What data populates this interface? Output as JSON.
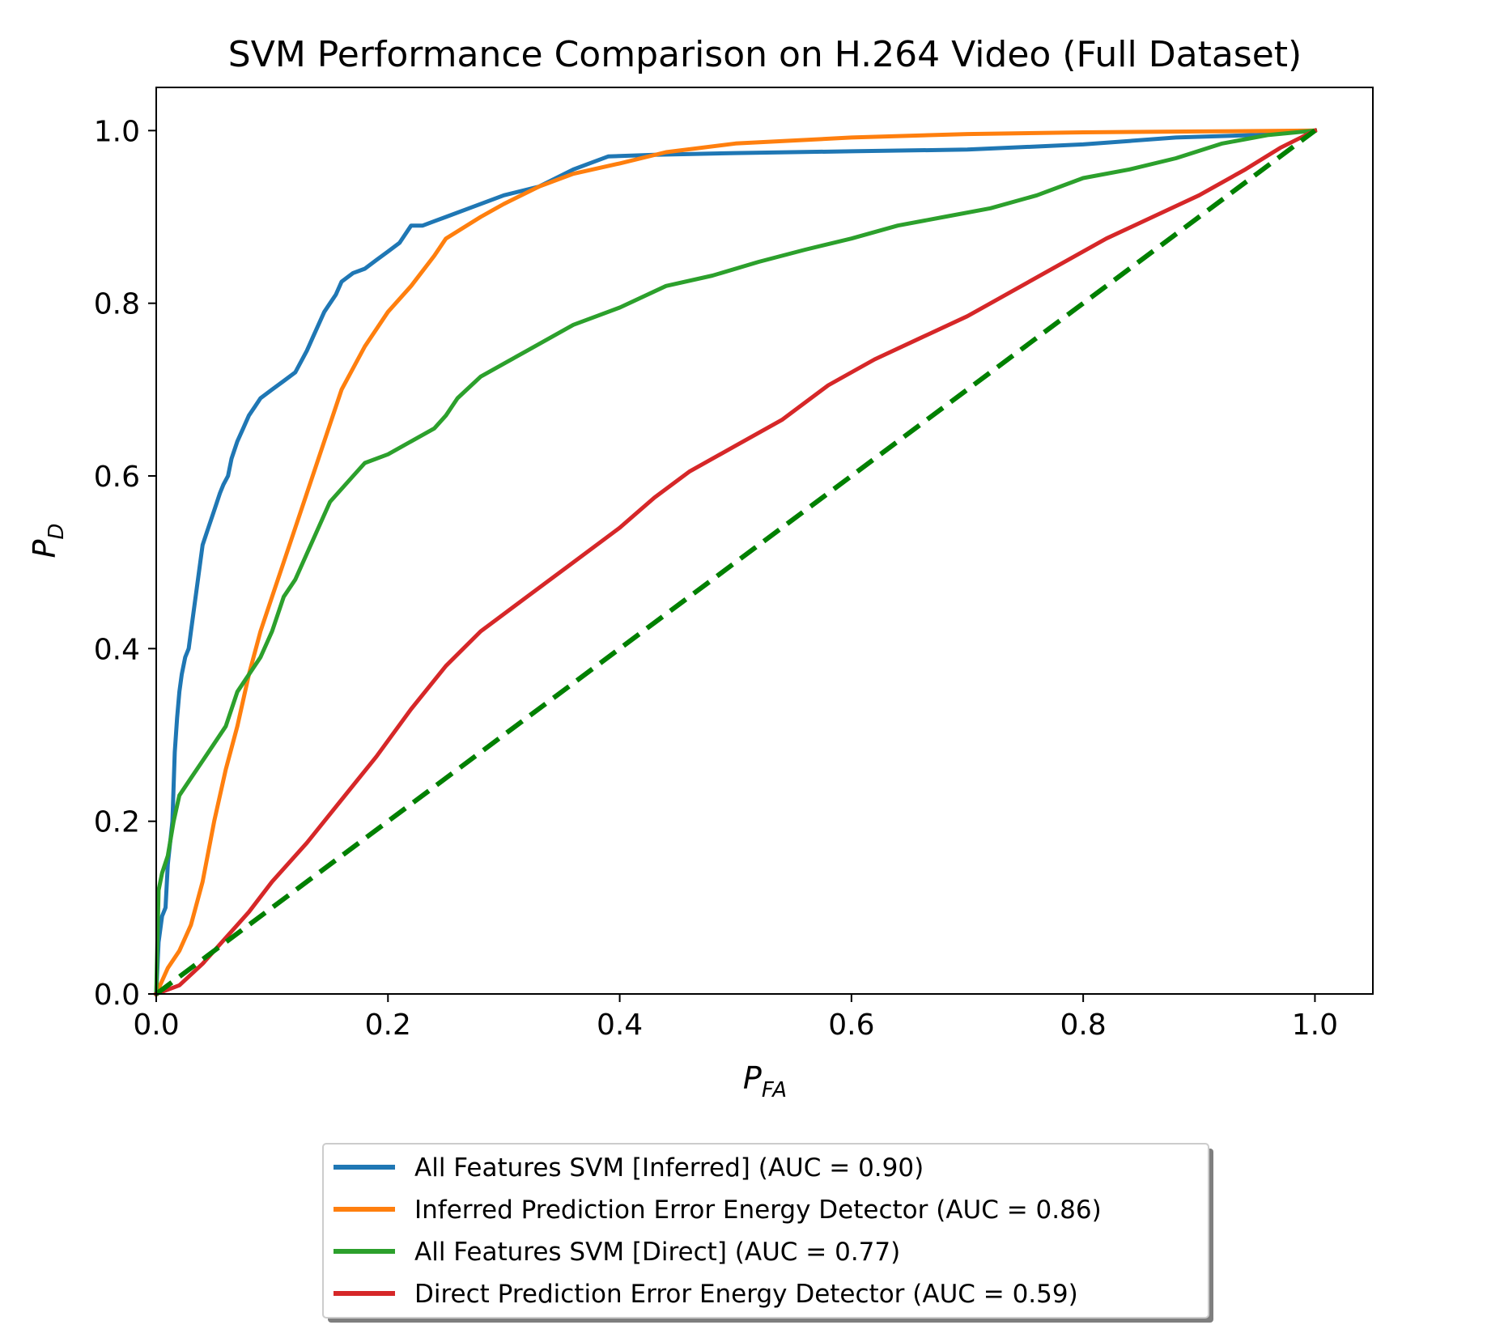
{
  "chart_data": {
    "type": "line",
    "title": "SVM Performance Comparison on H.264 Video (Full Dataset)",
    "xlabel": {
      "symbol": "P",
      "subscript": "FA"
    },
    "ylabel": {
      "symbol": "P",
      "subscript": "D"
    },
    "xlim": [
      0,
      1.05
    ],
    "ylim": [
      0,
      1.05
    ],
    "xticks": [
      0.0,
      0.2,
      0.4,
      0.6,
      0.8,
      1.0
    ],
    "xtick_labels": [
      "0.0",
      "0.2",
      "0.4",
      "0.6",
      "0.8",
      "1.0"
    ],
    "yticks": [
      0.0,
      0.2,
      0.4,
      0.6,
      0.8,
      1.0
    ],
    "ytick_labels": [
      "0.0",
      "0.2",
      "0.4",
      "0.6",
      "0.8",
      "1.0"
    ],
    "grid": false,
    "legend_position": "below-center",
    "series": [
      {
        "name": "All Features SVM [Inferred] (AUC = 0.90)",
        "color": "#1f77b4",
        "x": [
          0,
          0.002,
          0.005,
          0.008,
          0.01,
          0.014,
          0.016,
          0.018,
          0.02,
          0.022,
          0.025,
          0.028,
          0.03,
          0.035,
          0.038,
          0.04,
          0.045,
          0.05,
          0.055,
          0.058,
          0.062,
          0.065,
          0.07,
          0.075,
          0.08,
          0.085,
          0.09,
          0.1,
          0.11,
          0.12,
          0.13,
          0.135,
          0.14,
          0.145,
          0.15,
          0.155,
          0.16,
          0.17,
          0.18,
          0.19,
          0.2,
          0.21,
          0.22,
          0.23,
          0.24,
          0.25,
          0.27,
          0.3,
          0.33,
          0.36,
          0.39,
          0.43,
          0.5,
          0.6,
          0.7,
          0.8,
          0.88,
          0.95,
          1.0
        ],
        "y": [
          0,
          0.06,
          0.09,
          0.1,
          0.15,
          0.2,
          0.28,
          0.32,
          0.35,
          0.37,
          0.39,
          0.4,
          0.42,
          0.47,
          0.5,
          0.52,
          0.54,
          0.56,
          0.58,
          0.59,
          0.6,
          0.62,
          0.64,
          0.655,
          0.67,
          0.68,
          0.69,
          0.7,
          0.71,
          0.72,
          0.745,
          0.76,
          0.775,
          0.79,
          0.8,
          0.81,
          0.825,
          0.835,
          0.84,
          0.85,
          0.86,
          0.87,
          0.89,
          0.89,
          0.895,
          0.9,
          0.91,
          0.925,
          0.935,
          0.955,
          0.97,
          0.972,
          0.974,
          0.976,
          0.978,
          0.984,
          0.992,
          0.995,
          1.0
        ]
      },
      {
        "name": "Inferred Prediction Error Energy Detector (AUC = 0.86)",
        "color": "#ff7f0e",
        "x": [
          0,
          0.01,
          0.02,
          0.03,
          0.04,
          0.05,
          0.06,
          0.07,
          0.08,
          0.09,
          0.1,
          0.12,
          0.14,
          0.15,
          0.16,
          0.18,
          0.2,
          0.22,
          0.24,
          0.25,
          0.28,
          0.3,
          0.33,
          0.36,
          0.4,
          0.44,
          0.5,
          0.6,
          0.7,
          0.8,
          0.9,
          1.0
        ],
        "y": [
          0,
          0.03,
          0.05,
          0.08,
          0.13,
          0.2,
          0.26,
          0.31,
          0.37,
          0.42,
          0.46,
          0.54,
          0.62,
          0.66,
          0.7,
          0.75,
          0.79,
          0.82,
          0.855,
          0.875,
          0.9,
          0.915,
          0.935,
          0.95,
          0.962,
          0.975,
          0.985,
          0.992,
          0.996,
          0.998,
          0.999,
          1.0
        ]
      },
      {
        "name": "All Features SVM [Direct] (AUC = 0.77)",
        "color": "#2ca02c",
        "x": [
          0,
          0.002,
          0.005,
          0.01,
          0.015,
          0.02,
          0.03,
          0.04,
          0.05,
          0.06,
          0.07,
          0.08,
          0.09,
          0.1,
          0.11,
          0.12,
          0.13,
          0.14,
          0.15,
          0.16,
          0.17,
          0.18,
          0.2,
          0.22,
          0.24,
          0.25,
          0.26,
          0.28,
          0.3,
          0.32,
          0.34,
          0.36,
          0.4,
          0.44,
          0.48,
          0.52,
          0.56,
          0.6,
          0.64,
          0.68,
          0.72,
          0.76,
          0.8,
          0.84,
          0.88,
          0.92,
          0.96,
          1.0
        ],
        "y": [
          0,
          0.12,
          0.14,
          0.16,
          0.2,
          0.23,
          0.25,
          0.27,
          0.29,
          0.31,
          0.35,
          0.37,
          0.39,
          0.42,
          0.46,
          0.48,
          0.51,
          0.54,
          0.57,
          0.585,
          0.6,
          0.615,
          0.625,
          0.64,
          0.655,
          0.67,
          0.69,
          0.715,
          0.73,
          0.745,
          0.76,
          0.775,
          0.795,
          0.82,
          0.832,
          0.848,
          0.862,
          0.875,
          0.89,
          0.9,
          0.91,
          0.925,
          0.945,
          0.955,
          0.968,
          0.985,
          0.995,
          1.0
        ]
      },
      {
        "name": "Direct Prediction Error Energy Detector (AUC = 0.59)",
        "color": "#d62728",
        "x": [
          0,
          0.01,
          0.02,
          0.04,
          0.06,
          0.08,
          0.1,
          0.13,
          0.16,
          0.19,
          0.22,
          0.25,
          0.28,
          0.32,
          0.36,
          0.4,
          0.43,
          0.46,
          0.5,
          0.54,
          0.58,
          0.62,
          0.66,
          0.7,
          0.74,
          0.78,
          0.82,
          0.86,
          0.9,
          0.94,
          0.97,
          1.0
        ],
        "y": [
          0,
          0.005,
          0.01,
          0.035,
          0.065,
          0.095,
          0.13,
          0.175,
          0.225,
          0.275,
          0.33,
          0.38,
          0.42,
          0.46,
          0.5,
          0.54,
          0.575,
          0.605,
          0.635,
          0.665,
          0.705,
          0.735,
          0.76,
          0.785,
          0.815,
          0.845,
          0.875,
          0.9,
          0.925,
          0.955,
          0.98,
          1.0
        ]
      }
    ],
    "reference_line": {
      "x": [
        0,
        1
      ],
      "y": [
        0,
        1
      ],
      "color": "#008000",
      "style": "dashed"
    }
  }
}
